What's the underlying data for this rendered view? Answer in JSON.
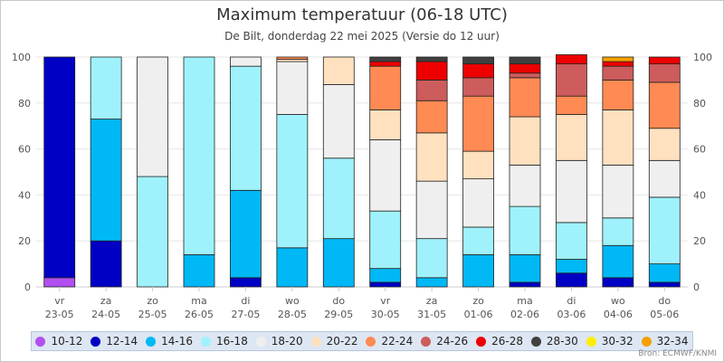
{
  "title": "Maximum temperatuur (06-18 UTC)",
  "subtitle": "De Bilt, donderdag 22 mei 2025 (Versie do 12 uur)",
  "source": "Bron: ECMWF/KNMI",
  "chart_data": {
    "type": "bar",
    "stacked": true,
    "ylim": [
      0,
      100
    ],
    "yticks": [
      0,
      20,
      40,
      60,
      80,
      100
    ],
    "grid": true,
    "legend_position": "bottom",
    "categories": [
      {
        "day": "vr",
        "date": "23-05"
      },
      {
        "day": "za",
        "date": "24-05"
      },
      {
        "day": "zo",
        "date": "25-05"
      },
      {
        "day": "ma",
        "date": "26-05"
      },
      {
        "day": "di",
        "date": "27-05"
      },
      {
        "day": "wo",
        "date": "28-05"
      },
      {
        "day": "do",
        "date": "29-05"
      },
      {
        "day": "vr",
        "date": "30-05"
      },
      {
        "day": "za",
        "date": "31-05"
      },
      {
        "day": "zo",
        "date": "01-06"
      },
      {
        "day": "ma",
        "date": "02-06"
      },
      {
        "day": "di",
        "date": "03-06"
      },
      {
        "day": "wo",
        "date": "04-06"
      },
      {
        "day": "do",
        "date": "05-06"
      }
    ],
    "series": [
      {
        "name": "10-12",
        "color": "#b14ff0",
        "values": [
          4,
          0,
          0,
          0,
          0,
          0,
          0,
          0,
          0,
          0,
          0,
          0,
          0,
          0
        ]
      },
      {
        "name": "12-14",
        "color": "#0000c4",
        "values": [
          96,
          20,
          0,
          0,
          4,
          0,
          0,
          2,
          0,
          0,
          2,
          6,
          4,
          2
        ]
      },
      {
        "name": "14-16",
        "color": "#00b8f5",
        "values": [
          0,
          53,
          0,
          14,
          38,
          17,
          21,
          6,
          4,
          14,
          12,
          6,
          14,
          8
        ]
      },
      {
        "name": "16-18",
        "color": "#9ff2fb",
        "values": [
          0,
          27,
          48,
          86,
          54,
          58,
          35,
          25,
          17,
          12,
          21,
          16,
          12,
          29
        ]
      },
      {
        "name": "18-20",
        "color": "#efefef",
        "values": [
          0,
          0,
          52,
          0,
          4,
          23,
          32,
          31,
          25,
          21,
          18,
          27,
          23,
          16
        ]
      },
      {
        "name": "20-22",
        "color": "#ffe1c0",
        "values": [
          0,
          0,
          0,
          0,
          0,
          1,
          12,
          13,
          21,
          12,
          21,
          20,
          24,
          14
        ]
      },
      {
        "name": "22-24",
        "color": "#ff8a53",
        "values": [
          0,
          0,
          0,
          0,
          0,
          1,
          0,
          19,
          14,
          24,
          17,
          8,
          13,
          20
        ]
      },
      {
        "name": "24-26",
        "color": "#cd5c5c",
        "values": [
          0,
          0,
          0,
          0,
          0,
          0,
          0,
          0,
          9,
          8,
          2,
          14,
          6,
          8
        ]
      },
      {
        "name": "26-28",
        "color": "#ee0000",
        "values": [
          0,
          0,
          0,
          0,
          0,
          0,
          0,
          2,
          8,
          6,
          4,
          4,
          2,
          3
        ]
      },
      {
        "name": "28-30",
        "color": "#404040",
        "values": [
          0,
          0,
          0,
          0,
          0,
          0,
          0,
          2,
          2,
          3,
          3,
          0,
          0,
          0
        ]
      },
      {
        "name": "30-32",
        "color": "#ffee00",
        "values": [
          0,
          0,
          0,
          0,
          0,
          0,
          0,
          0,
          0,
          0,
          0,
          0,
          0,
          0
        ]
      },
      {
        "name": "32-34",
        "color": "#f5a000",
        "values": [
          0,
          0,
          0,
          0,
          0,
          0,
          0,
          0,
          0,
          0,
          0,
          0,
          2,
          0
        ]
      }
    ]
  }
}
